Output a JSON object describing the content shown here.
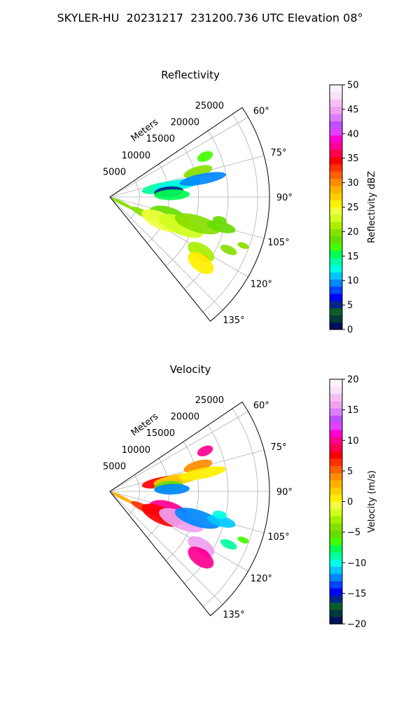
{
  "figure_title": "SKYLER-HU  20231217  231200.736 UTC Elevation 08°",
  "chart_data": [
    {
      "type": "polar-sector",
      "title": "Reflectivity",
      "radial_label": "Meters",
      "radial_ticks": [
        "5000",
        "10000",
        "15000",
        "20000",
        "25000"
      ],
      "radial_tick_values": [
        5000,
        10000,
        15000,
        20000,
        25000
      ],
      "r_max": 27000,
      "angle_ticks": [
        "60°",
        "75°",
        "90°",
        "105°",
        "120°",
        "135°"
      ],
      "angle_tick_values": [
        60,
        75,
        90,
        105,
        120,
        135
      ],
      "angle_range": [
        56,
        141
      ],
      "colorbar": {
        "label": "Reflectivity dBZ",
        "ticks": [
          "0",
          "5",
          "10",
          "15",
          "20",
          "25",
          "30",
          "35",
          "40",
          "45",
          "50"
        ],
        "range": [
          0,
          50
        ],
        "colors": [
          "#00105a",
          "#003a3a",
          "#0d5d2a",
          "#00268a",
          "#0000ff",
          "#0048ff",
          "#0088ff",
          "#00c8ff",
          "#00ffe4",
          "#00ffa0",
          "#00ff50",
          "#44ff00",
          "#66dd00",
          "#88e000",
          "#a8f000",
          "#d0ff20",
          "#f0ff40",
          "#fff000",
          "#ffd000",
          "#ffb000",
          "#ff8c00",
          "#ff6000",
          "#ff3000",
          "#ff0000",
          "#ff0050",
          "#ff0090",
          "#ff00d0",
          "#e040ff",
          "#c050ff",
          "#d880ff",
          "#f0a0f0",
          "#f4c0f4",
          "#fae0fa",
          "#fff2ff"
        ]
      },
      "echoes": [
        {
          "az": 80,
          "r": 9000,
          "ar": 3500,
          "at": 900,
          "rot": 15,
          "v": 14
        },
        {
          "az": 80,
          "r": 11500,
          "ar": 4000,
          "at": 900,
          "rot": 15,
          "v": 12
        },
        {
          "az": 74,
          "r": 15500,
          "ar": 2500,
          "at": 900,
          "rot": 15,
          "v": 20
        },
        {
          "az": 79,
          "r": 16000,
          "ar": 4000,
          "at": 900,
          "rot": 15,
          "v": 10
        },
        {
          "az": 67,
          "r": 17500,
          "ar": 1400,
          "at": 800,
          "rot": 15,
          "v": 17
        },
        {
          "az": 85,
          "r": 10000,
          "ar": 2500,
          "at": 900,
          "rot": 0,
          "v": 5
        },
        {
          "az": 88,
          "r": 10500,
          "ar": 3000,
          "at": 900,
          "rot": 0,
          "v": 15
        },
        {
          "az": 117,
          "r": 2500,
          "ar": 2200,
          "at": 300,
          "rot": 31,
          "v": 20
        },
        {
          "az": 116,
          "r": 6500,
          "ar": 2500,
          "at": 600,
          "rot": 31,
          "v": 20
        },
        {
          "az": 109,
          "r": 10500,
          "ar": 3500,
          "at": 1700,
          "rot": 23,
          "v": 18
        },
        {
          "az": 115,
          "r": 9500,
          "ar": 3500,
          "at": 1400,
          "rot": 23,
          "v": 24
        },
        {
          "az": 112,
          "r": 13000,
          "ar": 4000,
          "at": 1500,
          "rot": 23,
          "v": 23
        },
        {
          "az": 107,
          "r": 15500,
          "ar": 4000,
          "at": 1400,
          "rot": 23,
          "v": 20
        },
        {
          "az": 105,
          "r": 19500,
          "ar": 2500,
          "at": 900,
          "rot": 23,
          "v": 18
        },
        {
          "az": 121,
          "r": 18000,
          "ar": 2500,
          "at": 1300,
          "rot": 20,
          "v": 21
        },
        {
          "az": 123,
          "r": 19000,
          "ar": 1000,
          "at": 500,
          "rot": 20,
          "v": 30
        },
        {
          "az": 126,
          "r": 19000,
          "ar": 2500,
          "at": 1400,
          "rot": 45,
          "v": 26
        },
        {
          "az": 114,
          "r": 22000,
          "ar": 1500,
          "at": 700,
          "rot": 20,
          "v": 20
        },
        {
          "az": 102,
          "r": 19000,
          "ar": 1200,
          "at": 700,
          "rot": 20,
          "v": 18
        },
        {
          "az": 110,
          "r": 24000,
          "ar": 1000,
          "at": 500,
          "rot": 20,
          "v": 20
        }
      ]
    },
    {
      "type": "polar-sector",
      "title": "Velocity",
      "radial_label": "Meters",
      "radial_ticks": [
        "5000",
        "10000",
        "15000",
        "20000",
        "25000"
      ],
      "radial_tick_values": [
        5000,
        10000,
        15000,
        20000,
        25000
      ],
      "r_max": 27000,
      "angle_ticks": [
        "60°",
        "75°",
        "90°",
        "105°",
        "120°",
        "135°"
      ],
      "angle_tick_values": [
        60,
        75,
        90,
        105,
        120,
        135
      ],
      "angle_range": [
        56,
        141
      ],
      "colorbar": {
        "label": "Velocity (m/s)",
        "ticks": [
          "−20",
          "−15",
          "−10",
          "−5",
          "0",
          "5",
          "10",
          "15",
          "20"
        ],
        "range": [
          -20,
          20
        ],
        "colors": [
          "#00105a",
          "#003a3a",
          "#0d5d2a",
          "#00268a",
          "#0000ff",
          "#0048ff",
          "#0088ff",
          "#00c8ff",
          "#00ffe4",
          "#00ffa0",
          "#00ff50",
          "#44ff00",
          "#66dd00",
          "#88e000",
          "#a8f000",
          "#d0ff20",
          "#f0ff40",
          "#fff000",
          "#ffd000",
          "#ffb000",
          "#ff8c00",
          "#ff6000",
          "#ff3000",
          "#ff0000",
          "#ff0050",
          "#ff0090",
          "#ff00d0",
          "#e040ff",
          "#c050ff",
          "#d880ff",
          "#f0a0f0",
          "#f4c0f4",
          "#fae0fa",
          "#fff2ff"
        ]
      },
      "echoes": [
        {
          "az": 80,
          "r": 9000,
          "ar": 3500,
          "at": 900,
          "rot": 15,
          "v": 8
        },
        {
          "az": 80,
          "r": 11500,
          "ar": 4000,
          "at": 900,
          "rot": 15,
          "v": 2
        },
        {
          "az": 74,
          "r": 15500,
          "ar": 2500,
          "at": 900,
          "rot": 15,
          "v": 4
        },
        {
          "az": 79,
          "r": 16000,
          "ar": 4000,
          "at": 900,
          "rot": 15,
          "v": 1
        },
        {
          "az": 67,
          "r": 17500,
          "ar": 1400,
          "at": 800,
          "rot": 15,
          "v": 10
        },
        {
          "az": 85,
          "r": 10000,
          "ar": 2500,
          "at": 900,
          "rot": 0,
          "v": -5
        },
        {
          "az": 88,
          "r": 10500,
          "ar": 3000,
          "at": 900,
          "rot": 0,
          "v": -12
        },
        {
          "az": 117,
          "r": 2500,
          "ar": 2200,
          "at": 300,
          "rot": 31,
          "v": 3
        },
        {
          "az": 116,
          "r": 6500,
          "ar": 2500,
          "at": 600,
          "rot": 31,
          "v": 6
        },
        {
          "az": 109,
          "r": 10500,
          "ar": 3500,
          "at": 1700,
          "rot": 23,
          "v": 10
        },
        {
          "az": 115,
          "r": 9500,
          "ar": 3500,
          "at": 1400,
          "rot": 23,
          "v": 8
        },
        {
          "az": 112,
          "r": 13000,
          "ar": 4000,
          "at": 1500,
          "rot": 23,
          "v": 16
        },
        {
          "az": 107,
          "r": 15500,
          "ar": 4000,
          "at": 1400,
          "rot": 23,
          "v": -12
        },
        {
          "az": 105,
          "r": 19500,
          "ar": 2500,
          "at": 900,
          "rot": 23,
          "v": -11
        },
        {
          "az": 121,
          "r": 18000,
          "ar": 2500,
          "at": 1300,
          "rot": 20,
          "v": 16
        },
        {
          "az": 123,
          "r": 19000,
          "ar": 1000,
          "at": 500,
          "rot": 20,
          "v": 11
        },
        {
          "az": 126,
          "r": 19000,
          "ar": 2500,
          "at": 1400,
          "rot": 45,
          "v": 10
        },
        {
          "az": 114,
          "r": 22000,
          "ar": 1500,
          "at": 700,
          "rot": 20,
          "v": -9
        },
        {
          "az": 102,
          "r": 19000,
          "ar": 1200,
          "at": 700,
          "rot": 20,
          "v": -10
        },
        {
          "az": 110,
          "r": 24000,
          "ar": 1000,
          "at": 500,
          "rot": 20,
          "v": -7
        }
      ]
    }
  ]
}
